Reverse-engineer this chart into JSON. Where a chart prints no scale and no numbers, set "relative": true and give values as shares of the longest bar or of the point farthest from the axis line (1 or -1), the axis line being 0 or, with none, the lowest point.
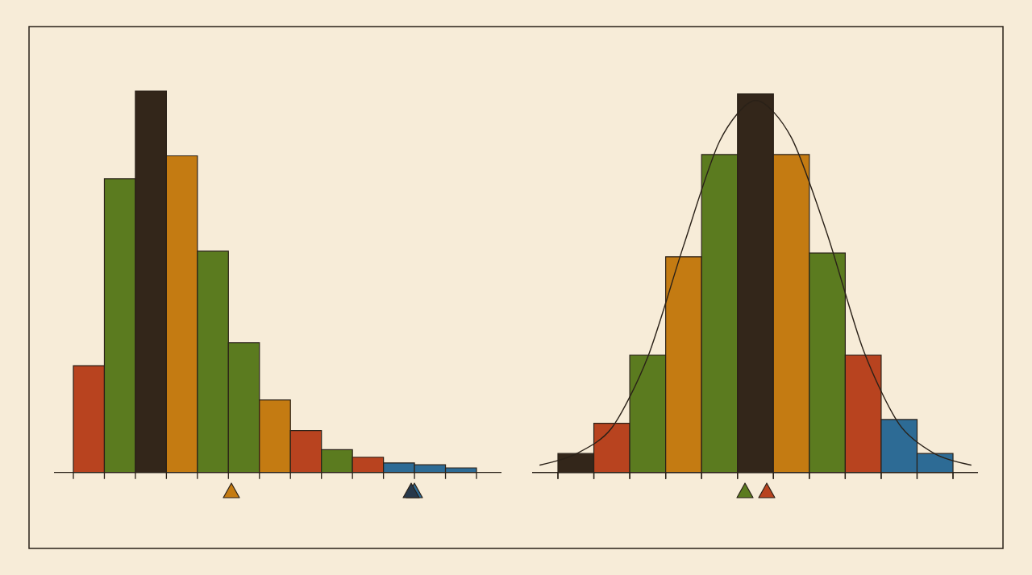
{
  "chart_data": [
    {
      "type": "bar",
      "relative": true,
      "categories": [
        null,
        null,
        null,
        null,
        null,
        null,
        null,
        null,
        null,
        null,
        null,
        null,
        null
      ],
      "series": [
        {
          "values": [
            0.28,
            0.77,
            1,
            0.83,
            0.58,
            0.34,
            0.19,
            0.11,
            0.06,
            0.04,
            0.025,
            0.02,
            0.012
          ],
          "colors": [
            "#b8431f",
            "#5b7b1f",
            "#33261a",
            "#c47b12",
            "#5b7b1f",
            "#5b7b1f",
            "#c47b12",
            "#b8431f",
            "#5b7b1f",
            "#b8431f",
            "#2d6b95",
            "#2d6b95",
            "#2d6b95"
          ]
        }
      ]
    },
    {
      "type": "bar",
      "relative": true,
      "categories": [
        null,
        null,
        null,
        null,
        null,
        null,
        null,
        null,
        null,
        null,
        null
      ],
      "series": [
        {
          "values": [
            0.05,
            0.13,
            0.31,
            0.57,
            0.84,
            1,
            0.84,
            0.58,
            0.31,
            0.14,
            0.05
          ],
          "colors": [
            "#33261a",
            "#b8431f",
            "#5b7b1f",
            "#c47b12",
            "#5b7b1f",
            "#33261a",
            "#c47b12",
            "#5b7b1f",
            "#b8431f",
            "#2d6b95",
            "#2d6b95"
          ]
        }
      ]
    },
    {
      "type": "line",
      "relative": true,
      "categories": [
        null,
        null,
        null,
        null,
        null,
        null,
        null,
        null,
        null,
        null,
        null,
        null,
        null
      ],
      "series": [
        {
          "color": "#2a2118",
          "values": [
            0.02,
            0.05,
            0.12,
            0.31,
            0.61,
            0.89,
            1,
            0.9,
            0.64,
            0.33,
            0.13,
            0.05,
            0.02
          ]
        }
      ]
    }
  ]
}
